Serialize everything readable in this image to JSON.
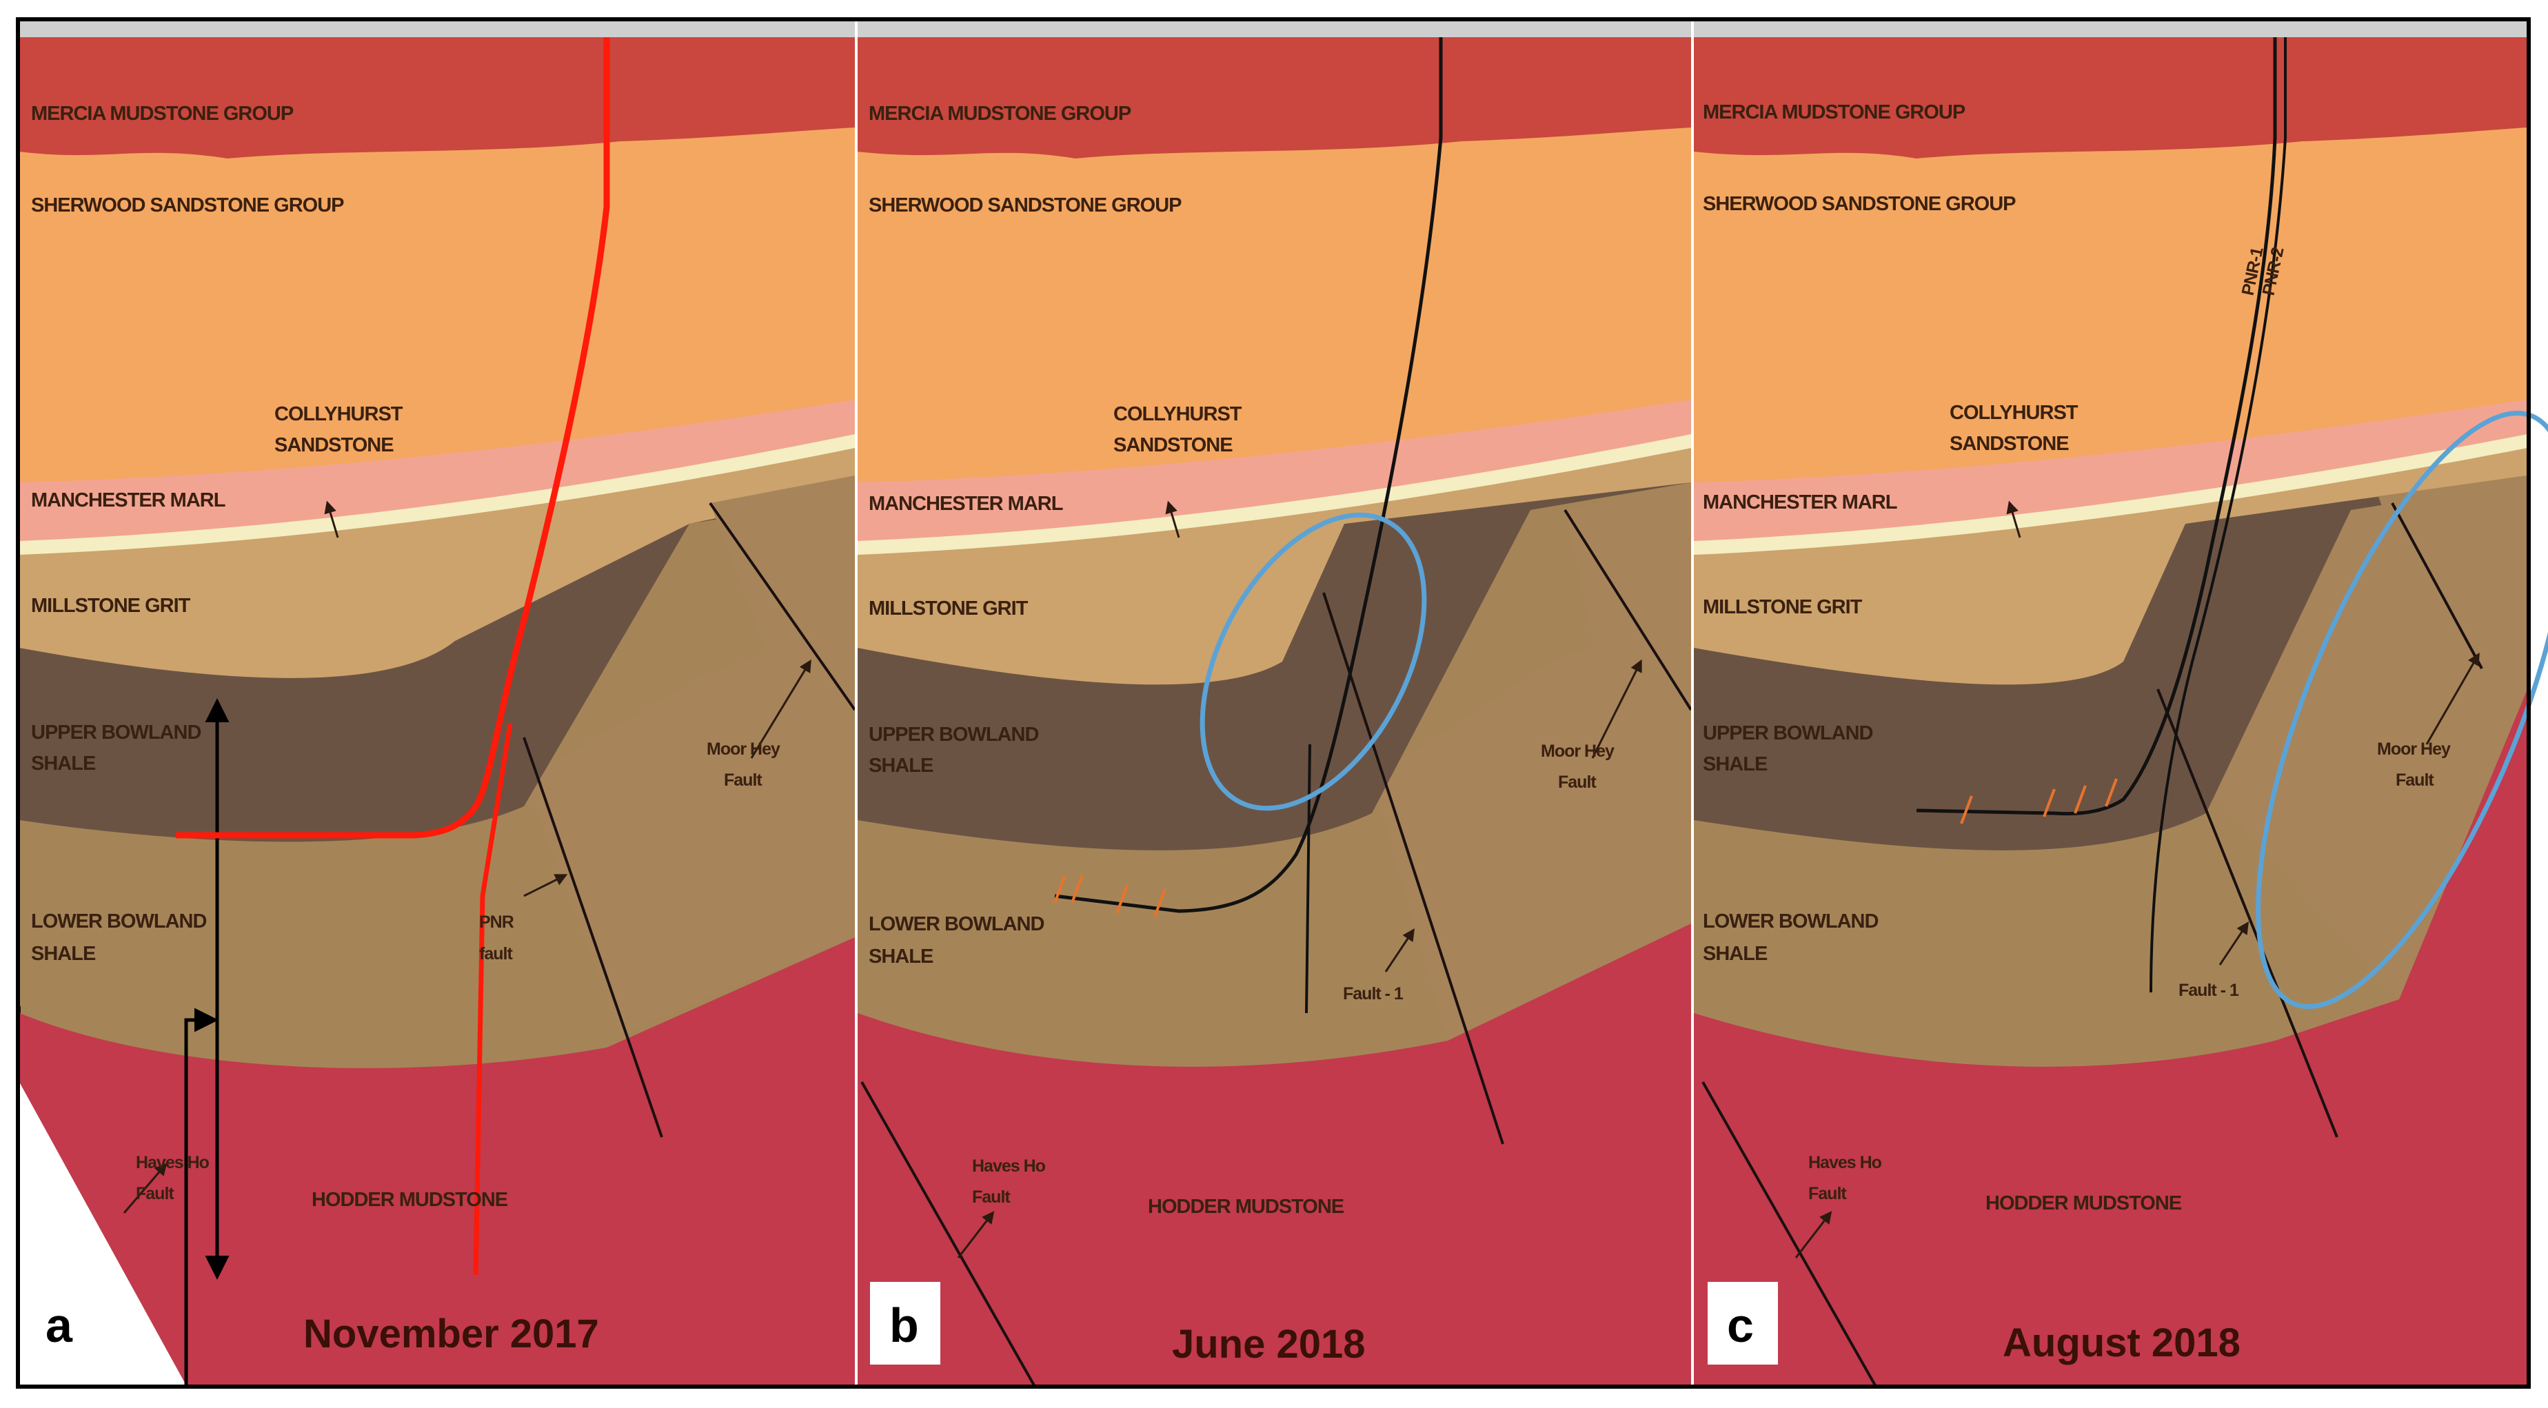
{
  "panels": [
    {
      "letter": "a",
      "date": "November 2017",
      "layers": {
        "mercia": "MERCIA MUDSTONE GROUP",
        "sherwood": "SHERWOOD SANDSTONE GROUP",
        "collyhurst_1": "COLLYHURST",
        "collyhurst_2": "SANDSTONE",
        "manchester": "MANCHESTER MARL",
        "millstone": "MILLSTONE GRIT",
        "upper_1": "UPPER BOWLAND",
        "upper_2": "SHALE",
        "lower_1": "LOWER BOWLAND",
        "lower_2": "SHALE",
        "hodder": "HODDER MUDSTONE"
      },
      "faults": {
        "moor_1": "Moor Hey",
        "moor_2": "Fault",
        "pnr_1": "PNR",
        "pnr_2": "fault",
        "hayes_1": "Haves Ho",
        "hayes_2": "Fault"
      }
    },
    {
      "letter": "b",
      "date": "June 2018",
      "layers": {
        "mercia": "MERCIA MUDSTONE GROUP",
        "sherwood": "SHERWOOD SANDSTONE GROUP",
        "collyhurst_1": "COLLYHURST",
        "collyhurst_2": "SANDSTONE",
        "manchester": "MANCHESTER MARL",
        "millstone": "MILLSTONE GRIT",
        "upper_1": "UPPER BOWLAND",
        "upper_2": "SHALE",
        "lower_1": "LOWER BOWLAND",
        "lower_2": "SHALE",
        "hodder": "HODDER MUDSTONE"
      },
      "faults": {
        "moor_1": "Moor Hey",
        "moor_2": "Fault",
        "fault1": "Fault - 1",
        "hayes_1": "Haves Ho",
        "hayes_2": "Fault"
      }
    },
    {
      "letter": "c",
      "date": "August 2018",
      "layers": {
        "mercia": "MERCIA MUDSTONE GROUP",
        "sherwood": "SHERWOOD SANDSTONE GROUP",
        "collyhurst_1": "COLLYHURST",
        "collyhurst_2": "SANDSTONE",
        "manchester": "MANCHESTER MARL",
        "millstone": "MILLSTONE GRIT",
        "upper_1": "UPPER BOWLAND",
        "upper_2": "SHALE",
        "lower_1": "LOWER BOWLAND",
        "lower_2": "SHALE",
        "hodder": "HODDER MUDSTONE"
      },
      "faults": {
        "moor_1": "Moor Hey",
        "moor_2": "Fault",
        "fault1": "Fault - 1",
        "hayes_1": "Haves Ho",
        "hayes_2": "Fault"
      },
      "wells": {
        "pnr1": "PNR-1",
        "pnr2": "PNR-2"
      }
    }
  ],
  "colors": {
    "mercia": "#c9473e",
    "sherwood": "#f4a761",
    "manchester": "#f2a493",
    "collyhurst": "#f4eec2",
    "millstone": "#cca36c",
    "upper_bowland": "#6b5344",
    "lower_bowland": "#a58558",
    "fault_block": "#a7845a",
    "hodder": "#c23a4c",
    "well_nov2017": "#ff1a0a",
    "well_2018": "#111111",
    "highlight_ellipse": "#5ba3d6",
    "fracture_marks": "#e8732c"
  }
}
